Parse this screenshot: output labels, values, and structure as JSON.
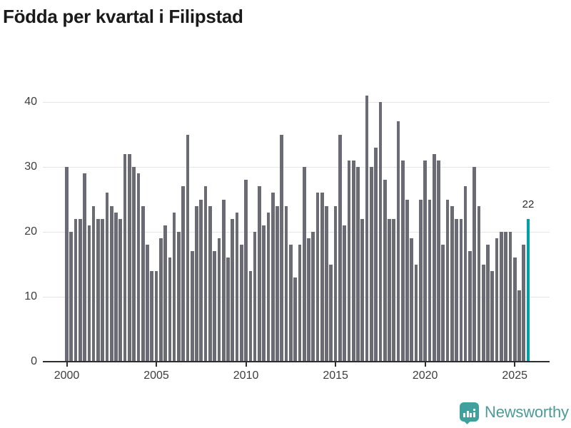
{
  "title": "Födda per kvartal i Filipstad",
  "chart_data": {
    "type": "bar",
    "title": "Födda per kvartal i Filipstad",
    "x_unit": "quarter",
    "x_start_year": 2000,
    "x_start_quarter": 1,
    "x_end_year": 2025,
    "x_end_quarter": 4,
    "x_tick_labels": [
      "2000",
      "2005",
      "2010",
      "2015",
      "2020",
      "2025"
    ],
    "x_tick_indices": [
      0,
      20,
      40,
      60,
      80,
      100
    ],
    "y_ticks": [
      0,
      10,
      20,
      30,
      40
    ],
    "ylim": [
      0,
      42
    ],
    "grid": "horizontal",
    "legend": "none",
    "bar_color": "#6b6b75",
    "highlight_color": "#00a0a6",
    "highlight_index": 103,
    "highlight_label": "22",
    "values": [
      30,
      20,
      22,
      22,
      29,
      21,
      24,
      22,
      22,
      26,
      24,
      23,
      22,
      32,
      32,
      30,
      29,
      24,
      18,
      14,
      14,
      19,
      21,
      16,
      23,
      20,
      27,
      35,
      17,
      24,
      25,
      27,
      24,
      17,
      19,
      25,
      16,
      22,
      23,
      18,
      28,
      14,
      20,
      27,
      21,
      23,
      26,
      24,
      35,
      24,
      18,
      13,
      18,
      30,
      19,
      20,
      26,
      26,
      24,
      15,
      24,
      35,
      21,
      31,
      31,
      30,
      22,
      41,
      30,
      33,
      40,
      28,
      22,
      22,
      37,
      31,
      25,
      19,
      15,
      25,
      31,
      25,
      32,
      31,
      18,
      25,
      24,
      22,
      22,
      27,
      17,
      30,
      24,
      15,
      18,
      14,
      19,
      20,
      20,
      20,
      16,
      11,
      18,
      22
    ]
  },
  "footer": {
    "brand": "Newsworthy",
    "brand_color": "#4c9b99",
    "logo_icon": "newsworthy-speech-bubble-chart-icon"
  }
}
